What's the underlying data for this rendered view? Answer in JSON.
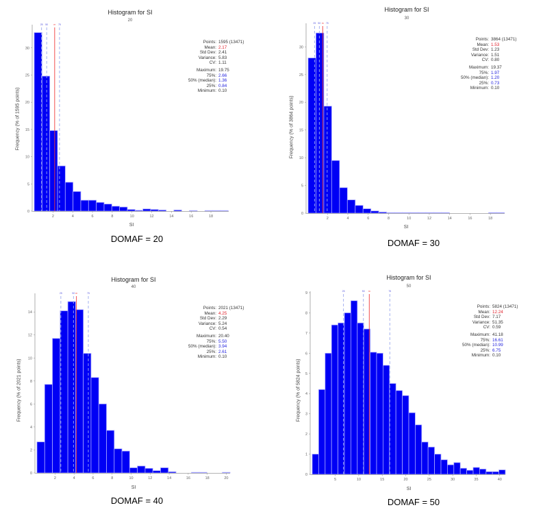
{
  "colors": {
    "bar": "#0000f5",
    "bar_edge": "#a8a8ff",
    "mean_line": "#f03a3a",
    "quantile_line": "#9aa8ee",
    "axis": "#999999"
  },
  "chart_data": [
    {
      "type": "bar",
      "title": "Histogram for SI",
      "subtitle": "20",
      "caption": "DOMAF = 20",
      "xlabel": "SI",
      "ylabel": "Frequency (% of 1595 points)",
      "xlim": [
        0.1,
        19.8
      ],
      "ylim": [
        0,
        34
      ],
      "xticks": [
        2,
        4,
        6,
        8,
        10,
        12,
        14,
        16,
        18
      ],
      "yticks": [
        0,
        5,
        10,
        15,
        20,
        25,
        30
      ],
      "bin_start": 0.1,
      "bin_width": 0.786,
      "values": [
        32.8,
        24.8,
        14.8,
        8.3,
        5.3,
        3.6,
        2.0,
        2.0,
        1.6,
        1.3,
        0.9,
        0.75,
        0.3,
        0.15,
        0.4,
        0.3,
        0.2,
        0.0,
        0.2,
        0.0,
        0.1,
        0.0,
        0.1,
        0.1,
        0.1
      ],
      "markers": [
        {
          "label": "25",
          "value": 0.84,
          "kind": "quantile"
        },
        {
          "label": "50",
          "value": 1.36,
          "kind": "quantile"
        },
        {
          "label": "m",
          "value": 2.17,
          "kind": "mean"
        },
        {
          "label": "75",
          "value": 2.66,
          "kind": "quantile"
        }
      ],
      "stats": [
        {
          "key": "Points:",
          "value": "1595 (13471)",
          "color": ""
        },
        {
          "key": "Mean:",
          "value": "2.17",
          "color": "red"
        },
        {
          "key": "Std Dev:",
          "value": "2.41",
          "color": ""
        },
        {
          "key": "Variance:",
          "value": "5.83",
          "color": ""
        },
        {
          "key": "CV:",
          "value": "1.11",
          "color": ""
        },
        {
          "key": "",
          "value": "",
          "color": "gap"
        },
        {
          "key": "Maximum:",
          "value": "19.75",
          "color": ""
        },
        {
          "key": "75%:",
          "value": "2.66",
          "color": "blue"
        },
        {
          "key": "50% (median):",
          "value": "1.36",
          "color": "blue"
        },
        {
          "key": "25%:",
          "value": "0.84",
          "color": "blue"
        },
        {
          "key": "Minimum:",
          "value": "0.10",
          "color": ""
        }
      ]
    },
    {
      "type": "bar",
      "title": "Histogram for SI",
      "subtitle": "30",
      "caption": "DOMAF = 30",
      "xlabel": "SI",
      "ylabel": "Frequency (% of 3864 points)",
      "xlim": [
        0.1,
        19.4
      ],
      "ylim": [
        0,
        34
      ],
      "xticks": [
        2,
        4,
        6,
        8,
        10,
        12,
        14,
        16,
        18
      ],
      "yticks": [
        0,
        5,
        10,
        15,
        20,
        25,
        30
      ],
      "bin_start": 0.1,
      "bin_width": 0.7708,
      "values": [
        28.0,
        32.5,
        19.3,
        9.5,
        4.6,
        2.4,
        1.4,
        0.8,
        0.4,
        0.2,
        0.1,
        0.1,
        0.1,
        0.1,
        0.1,
        0.1,
        0.1,
        0.1,
        0.0,
        0.0,
        0.0,
        0.0,
        0.0,
        0.1,
        0.1
      ],
      "markers": [
        {
          "label": "25",
          "value": 0.73,
          "kind": "quantile"
        },
        {
          "label": "50",
          "value": 1.2,
          "kind": "quantile"
        },
        {
          "label": "m",
          "value": 1.53,
          "kind": "mean"
        },
        {
          "label": "75",
          "value": 1.97,
          "kind": "quantile"
        }
      ],
      "stats": [
        {
          "key": "Points:",
          "value": "3864 (13471)",
          "color": ""
        },
        {
          "key": "Mean:",
          "value": "1.53",
          "color": "red"
        },
        {
          "key": "Std Dev:",
          "value": "1.23",
          "color": ""
        },
        {
          "key": "Variance:",
          "value": "1.51",
          "color": ""
        },
        {
          "key": "CV:",
          "value": "0.80",
          "color": ""
        },
        {
          "key": "",
          "value": "",
          "color": "gap"
        },
        {
          "key": "Maximum:",
          "value": "19.37",
          "color": ""
        },
        {
          "key": "75%:",
          "value": "1.97",
          "color": "blue"
        },
        {
          "key": "50% (median):",
          "value": "1.20",
          "color": "blue"
        },
        {
          "key": "25%:",
          "value": "0.73",
          "color": "blue"
        },
        {
          "key": "Minimum:",
          "value": "0.10",
          "color": ""
        }
      ]
    },
    {
      "type": "bar",
      "title": "Histogram for SI",
      "subtitle": "40",
      "caption": "DOMAF = 40",
      "xlabel": "SI",
      "ylabel": "Frequency (% of 2021 points)",
      "xlim": [
        0.1,
        20.4
      ],
      "ylim": [
        0,
        15.5
      ],
      "xticks": [
        2,
        4,
        6,
        8,
        10,
        12,
        14,
        16,
        18,
        20
      ],
      "yticks": [
        0,
        2,
        4,
        6,
        8,
        10,
        12,
        14
      ],
      "bin_start": 0.1,
      "bin_width": 0.812,
      "values": [
        2.7,
        7.7,
        11.7,
        14.1,
        14.9,
        14.2,
        10.4,
        8.3,
        6.0,
        3.7,
        2.1,
        1.9,
        0.45,
        0.6,
        0.4,
        0.2,
        0.45,
        0.1,
        0.0,
        0.0,
        0.05,
        0.05,
        0.0,
        0.0,
        0.05
      ],
      "markers": [
        {
          "label": "25",
          "value": 2.61,
          "kind": "quantile"
        },
        {
          "label": "50",
          "value": 3.94,
          "kind": "quantile"
        },
        {
          "label": "m",
          "value": 4.25,
          "kind": "mean"
        },
        {
          "label": "75",
          "value": 5.5,
          "kind": "quantile"
        }
      ],
      "stats": [
        {
          "key": "Points:",
          "value": "2021 (13471)",
          "color": ""
        },
        {
          "key": "Mean:",
          "value": "4.25",
          "color": "red"
        },
        {
          "key": "Std Dev:",
          "value": "2.29",
          "color": ""
        },
        {
          "key": "Variance:",
          "value": "5.24",
          "color": ""
        },
        {
          "key": "CV:",
          "value": "0.54",
          "color": ""
        },
        {
          "key": "",
          "value": "",
          "color": "gap"
        },
        {
          "key": "Maximum:",
          "value": "20.40",
          "color": ""
        },
        {
          "key": "75%:",
          "value": "5.50",
          "color": "blue"
        },
        {
          "key": "50% (median):",
          "value": "3.94",
          "color": "blue"
        },
        {
          "key": "25%:",
          "value": "2.61",
          "color": "blue"
        },
        {
          "key": "Minimum:",
          "value": "0.10",
          "color": ""
        }
      ]
    },
    {
      "type": "bar",
      "title": "Histogram for SI",
      "subtitle": "50",
      "caption": "DOMAF = 50",
      "xlabel": "SI",
      "ylabel": "Frequency (% of 5824 points)",
      "xlim": [
        0.1,
        41.2
      ],
      "ylim": [
        0,
        9
      ],
      "xticks": [
        5,
        10,
        15,
        20,
        25,
        30,
        35,
        40
      ],
      "yticks": [
        0,
        1,
        2,
        3,
        4,
        5,
        6,
        7,
        8,
        9
      ],
      "bin_start": 0.1,
      "bin_width": 1.37,
      "values": [
        1.0,
        4.2,
        6.0,
        7.4,
        7.5,
        8.0,
        8.6,
        7.5,
        7.2,
        6.05,
        6.0,
        5.4,
        4.5,
        4.15,
        3.9,
        3.05,
        2.45,
        1.6,
        1.35,
        1.0,
        0.72,
        0.47,
        0.58,
        0.3,
        0.2,
        0.34,
        0.26,
        0.13,
        0.13,
        0.22
      ],
      "markers": [
        {
          "label": "25",
          "value": 6.75,
          "kind": "quantile"
        },
        {
          "label": "50",
          "value": 10.99,
          "kind": "quantile"
        },
        {
          "label": "m",
          "value": 12.24,
          "kind": "mean"
        },
        {
          "label": "75",
          "value": 16.61,
          "kind": "quantile"
        }
      ],
      "stats": [
        {
          "key": "Points:",
          "value": "5824 (13471)",
          "color": ""
        },
        {
          "key": "Mean:",
          "value": "12.24",
          "color": "red"
        },
        {
          "key": "Std Dev:",
          "value": "7.17",
          "color": ""
        },
        {
          "key": "Variance:",
          "value": "51.35",
          "color": ""
        },
        {
          "key": "CV:",
          "value": "0.59",
          "color": ""
        },
        {
          "key": "",
          "value": "",
          "color": "gap"
        },
        {
          "key": "Maximum:",
          "value": "41.18",
          "color": ""
        },
        {
          "key": "75%:",
          "value": "16.61",
          "color": "blue"
        },
        {
          "key": "50% (median):",
          "value": "10.99",
          "color": "blue"
        },
        {
          "key": "25%:",
          "value": "6.75",
          "color": "blue"
        },
        {
          "key": "Minimum:",
          "value": "0.10",
          "color": ""
        }
      ]
    }
  ]
}
